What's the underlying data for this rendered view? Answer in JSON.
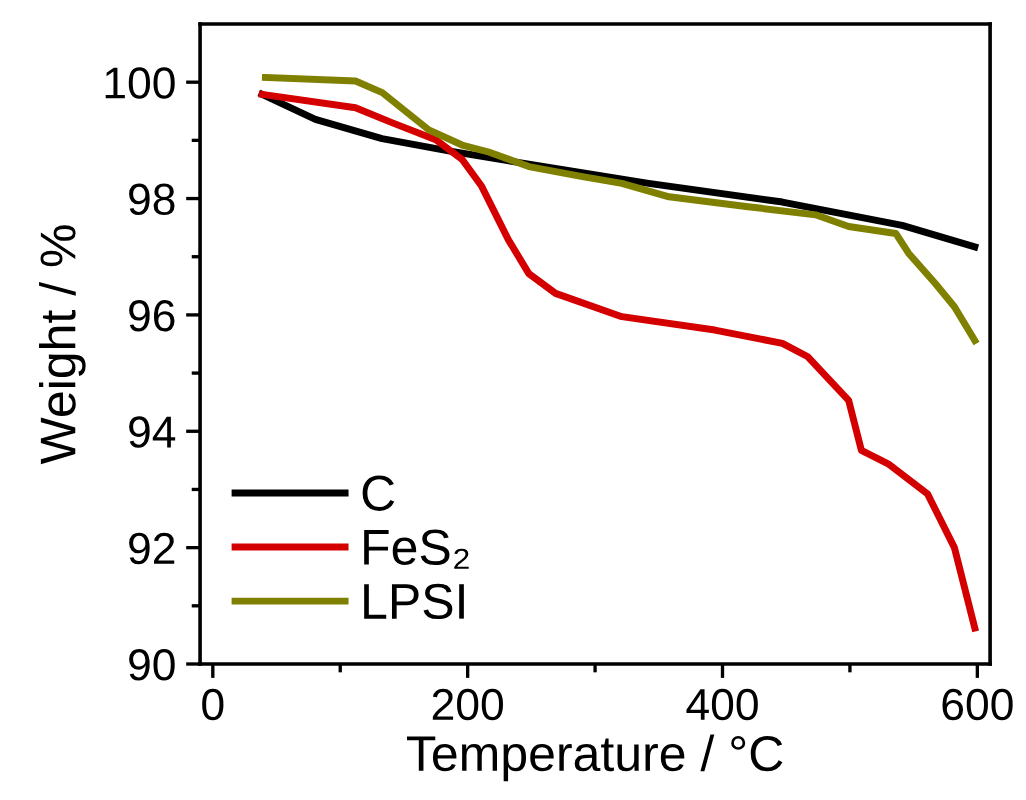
{
  "chart_data": {
    "type": "line",
    "xlabel": "Temperature / °C",
    "ylabel": "Weight / %",
    "xlim": [
      -10,
      610
    ],
    "ylim": [
      90,
      101
    ],
    "xticks": [
      0,
      200,
      400,
      600
    ],
    "yticks": [
      90,
      92,
      94,
      96,
      98,
      100
    ],
    "grid": false,
    "legend": "bottom left",
    "marker": "none",
    "line_style": "solid",
    "series": [
      {
        "name": "C",
        "color": "#000000",
        "x": [
          38.7,
          80.5,
          132.8,
          185,
          237,
          342,
          447,
          541,
          598
        ],
        "values": [
          99.79,
          99.36,
          99.03,
          98.82,
          98.63,
          98.26,
          97.94,
          97.54,
          97.17
        ]
      },
      {
        "name": "FeS₂",
        "color": "#d40000",
        "x": [
          38.7,
          112,
          141,
          175,
          195.7,
          211,
          232,
          248,
          269,
          321,
          394,
          447,
          467,
          499,
          509,
          530,
          561,
          582,
          598
        ],
        "values": [
          99.79,
          99.56,
          99.3,
          99.01,
          98.67,
          98.21,
          97.29,
          96.71,
          96.37,
          95.97,
          95.74,
          95.51,
          95.28,
          94.53,
          93.67,
          93.44,
          92.92,
          92.0,
          90.62
        ]
      },
      {
        "name": "LPSI",
        "color": "#808000",
        "x": [
          41.3,
          112,
          133,
          169.5,
          195.6,
          216.5,
          248,
          289,
          321,
          358,
          420,
          473,
          499,
          536,
          546,
          567,
          582,
          598
        ],
        "values": [
          100.08,
          100.02,
          99.82,
          99.18,
          98.92,
          98.8,
          98.55,
          98.38,
          98.26,
          98.03,
          97.86,
          97.72,
          97.52,
          97.4,
          97.06,
          96.54,
          96.14,
          95.56
        ]
      }
    ]
  }
}
